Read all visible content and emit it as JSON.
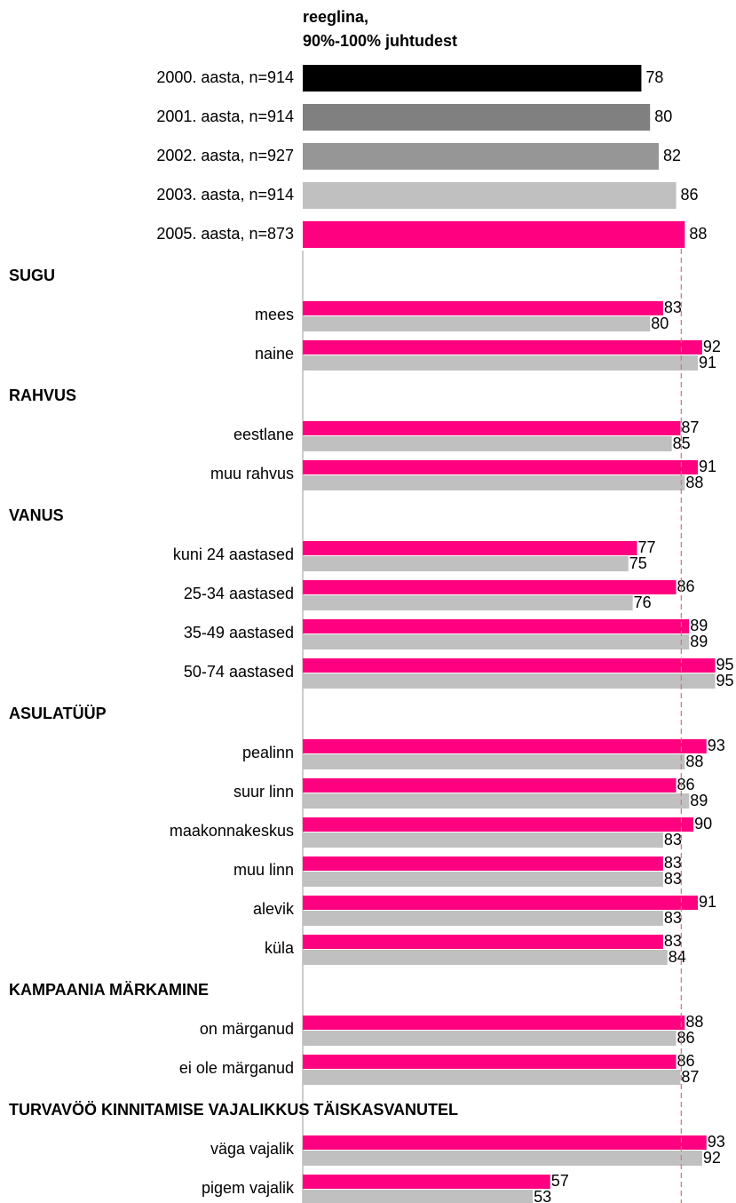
{
  "chart_data": {
    "type": "bar",
    "orientation": "horizontal",
    "title": [
      "reeglina,",
      "90%-100% juhtudest"
    ],
    "xlim": [
      0,
      100
    ],
    "years": {
      "categories": [
        "2000. aasta, n=914",
        "2001. aasta, n=914",
        "2002. aasta, n=927",
        "2003. aasta, n=914",
        "2005. aasta, n=873"
      ],
      "values": [
        78,
        80,
        82,
        86,
        88
      ],
      "colors": [
        "#000000",
        "#808080",
        "#969696",
        "#c0c0c0",
        "#ff0080"
      ]
    },
    "sections": [
      {
        "heading": "SUGU",
        "categories": [
          "mees",
          "naine"
        ],
        "series": [
          {
            "color": "#ff0080",
            "values": [
              83,
              92
            ]
          },
          {
            "color": "#c0c0c0",
            "values": [
              80,
              91
            ]
          }
        ]
      },
      {
        "heading": "RAHVUS",
        "categories": [
          "eestlane",
          "muu rahvus"
        ],
        "series": [
          {
            "color": "#ff0080",
            "values": [
              87,
              91
            ]
          },
          {
            "color": "#c0c0c0",
            "values": [
              85,
              88
            ]
          }
        ]
      },
      {
        "heading": "VANUS",
        "categories": [
          "kuni 24 aastased",
          "25-34 aastased",
          "35-49 aastased",
          "50-74 aastased"
        ],
        "series": [
          {
            "color": "#ff0080",
            "values": [
              77,
              86,
              89,
              95
            ]
          },
          {
            "color": "#c0c0c0",
            "values": [
              75,
              76,
              89,
              95
            ]
          }
        ]
      },
      {
        "heading": "ASULATÜÜP",
        "categories": [
          "pealinn",
          "suur linn",
          "maakonnakeskus",
          "muu linn",
          "alevik",
          "küla"
        ],
        "series": [
          {
            "color": "#ff0080",
            "values": [
              93,
              86,
              90,
              83,
              91,
              83
            ]
          },
          {
            "color": "#c0c0c0",
            "values": [
              88,
              89,
              83,
              83,
              83,
              84
            ]
          }
        ]
      },
      {
        "heading": "KAMPAANIA MÄRKAMINE",
        "categories": [
          "on märganud",
          "ei ole märganud"
        ],
        "series": [
          {
            "color": "#ff0080",
            "values": [
              88,
              86
            ]
          },
          {
            "color": "#c0c0c0",
            "values": [
              86,
              87
            ]
          }
        ]
      },
      {
        "heading": "TURVAVÖÖ KINNITAMISE VAJALIKKUS TÄISKASVANUTEL",
        "categories": [
          "väga vajalik",
          "pigem vajalik"
        ],
        "series": [
          {
            "color": "#ff0080",
            "values": [
              93,
              57
            ]
          },
          {
            "color": "#c0c0c0",
            "values": [
              92,
              53
            ]
          }
        ]
      }
    ]
  }
}
